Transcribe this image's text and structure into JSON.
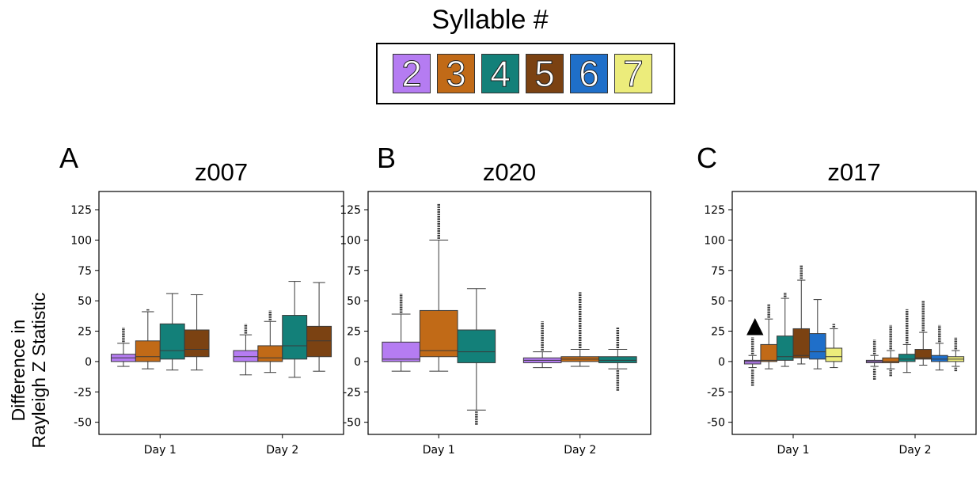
{
  "legend": {
    "title": "Syllable #",
    "items": [
      {
        "label": "2",
        "color": "#b57cf2"
      },
      {
        "label": "3",
        "color": "#c16a17"
      },
      {
        "label": "4",
        "color": "#138079"
      },
      {
        "label": "5",
        "color": "#7b4212"
      },
      {
        "label": "6",
        "color": "#1f6fc9"
      },
      {
        "label": "7",
        "color": "#ecec7b"
      }
    ]
  },
  "ylabel_lines": [
    "Difference in",
    "Rayleigh Z Statistic"
  ],
  "chart_data": [
    {
      "type": "box",
      "panel": "A",
      "title": "z007",
      "categories": [
        "Day 1",
        "Day 2"
      ],
      "yticks": [
        125,
        100,
        75,
        50,
        25,
        0,
        -25,
        -50
      ],
      "ylim": [
        -60,
        140
      ],
      "series": [
        {
          "name": "2",
          "boxes": [
            {
              "q1": 0,
              "median": 3,
              "q3": 6,
              "wlo": -4,
              "whi": 15,
              "outliers_high": [
                16,
                28
              ],
              "outliers_low": []
            },
            {
              "q1": 0,
              "median": 4,
              "q3": 9,
              "wlo": -11,
              "whi": 22,
              "outliers_high": [
                23,
                31
              ],
              "outliers_low": []
            }
          ]
        },
        {
          "name": "3",
          "boxes": [
            {
              "q1": 0,
              "median": 4,
              "q3": 17,
              "wlo": -6,
              "whi": 41,
              "outliers_high": [
                42,
                43
              ],
              "outliers_low": []
            },
            {
              "q1": 0,
              "median": 3,
              "q3": 13,
              "wlo": -9,
              "whi": 33,
              "outliers_high": [
                34,
                42
              ],
              "outliers_low": []
            }
          ]
        },
        {
          "name": "4",
          "boxes": [
            {
              "q1": 2,
              "median": 9,
              "q3": 31,
              "wlo": -7,
              "whi": 56,
              "outliers_high": [],
              "outliers_low": []
            },
            {
              "q1": 2,
              "median": 13,
              "q3": 38,
              "wlo": -13,
              "whi": 66,
              "outliers_high": [],
              "outliers_low": []
            }
          ]
        },
        {
          "name": "5",
          "boxes": [
            {
              "q1": 4,
              "median": 10,
              "q3": 26,
              "wlo": -7,
              "whi": 55,
              "outliers_high": [],
              "outliers_low": []
            },
            {
              "q1": 4,
              "median": 17,
              "q3": 29,
              "wlo": -8,
              "whi": 65,
              "outliers_high": [],
              "outliers_low": []
            }
          ]
        }
      ]
    },
    {
      "type": "box",
      "panel": "B",
      "title": "z020",
      "categories": [
        "Day 1",
        "Day 2"
      ],
      "yticks": [
        125,
        100,
        75,
        50,
        25,
        0,
        -25,
        -50
      ],
      "ylim": [
        -60,
        140
      ],
      "series": [
        {
          "name": "2",
          "boxes": [
            {
              "q1": 0,
              "median": 2,
              "q3": 16,
              "wlo": -8,
              "whi": 39,
              "outliers_high": [
                40,
                56
              ],
              "outliers_low": []
            },
            {
              "q1": -1,
              "median": 1,
              "q3": 3,
              "wlo": -5,
              "whi": 8,
              "outliers_high": [
                9,
                33
              ],
              "outliers_low": []
            }
          ]
        },
        {
          "name": "3",
          "boxes": [
            {
              "q1": 4,
              "median": 9,
              "q3": 42,
              "wlo": -8,
              "whi": 100,
              "outliers_high": [
                101,
                130
              ],
              "outliers_low": []
            },
            {
              "q1": 0,
              "median": 2,
              "q3": 4,
              "wlo": -4,
              "whi": 10,
              "outliers_high": [
                11,
                57
              ],
              "outliers_low": []
            }
          ]
        },
        {
          "name": "4",
          "boxes": [
            {
              "q1": -1,
              "median": 8,
              "q3": 26,
              "wlo": -40,
              "whi": 60,
              "outliers_high": [],
              "outliers_low": [
                -52,
                -41
              ]
            },
            {
              "q1": -1,
              "median": 1,
              "q3": 4,
              "wlo": -6,
              "whi": 10,
              "outliers_high": [
                11,
                28
              ],
              "outliers_low": [
                -24,
                -7
              ]
            }
          ]
        }
      ]
    },
    {
      "type": "box",
      "panel": "C",
      "title": "z017",
      "annotation": "▲",
      "categories": [
        "Day 1",
        "Day 2"
      ],
      "yticks": [
        125,
        100,
        75,
        50,
        25,
        0,
        -25,
        -50
      ],
      "ylim": [
        -60,
        140
      ],
      "series": [
        {
          "name": "2",
          "boxes": [
            {
              "q1": -2,
              "median": 0,
              "q3": 1,
              "wlo": -5,
              "whi": 5,
              "outliers_high": [
                6,
                20
              ],
              "outliers_low": [
                -20,
                -6
              ]
            },
            {
              "q1": -1,
              "median": 0,
              "q3": 1,
              "wlo": -4,
              "whi": 5,
              "outliers_high": [
                6,
                18
              ],
              "outliers_low": [
                -15,
                -5
              ]
            }
          ]
        },
        {
          "name": "3",
          "boxes": [
            {
              "q1": 0,
              "median": 1,
              "q3": 14,
              "wlo": -6,
              "whi": 35,
              "outliers_high": [
                36,
                47
              ],
              "outliers_low": []
            },
            {
              "q1": -1,
              "median": 0,
              "q3": 3,
              "wlo": -6,
              "whi": 9,
              "outliers_high": [
                10,
                30
              ],
              "outliers_low": [
                -12,
                -7
              ]
            }
          ]
        },
        {
          "name": "4",
          "boxes": [
            {
              "q1": 1,
              "median": 4,
              "q3": 21,
              "wlo": -4,
              "whi": 52,
              "outliers_high": [
                53,
                57
              ],
              "outliers_low": []
            },
            {
              "q1": 0,
              "median": 2,
              "q3": 6,
              "wlo": -9,
              "whi": 14,
              "outliers_high": [
                15,
                43
              ],
              "outliers_low": []
            }
          ]
        },
        {
          "name": "5",
          "boxes": [
            {
              "q1": 3,
              "median": 5,
              "q3": 27,
              "wlo": -2,
              "whi": 67,
              "outliers_high": [
                68,
                79
              ],
              "outliers_low": []
            },
            {
              "q1": 2,
              "median": 3,
              "q3": 10,
              "wlo": -3,
              "whi": 24,
              "outliers_high": [
                25,
                50
              ],
              "outliers_low": []
            }
          ]
        },
        {
          "name": "6",
          "boxes": [
            {
              "q1": 2,
              "median": 8,
              "q3": 23,
              "wlo": -6,
              "whi": 51,
              "outliers_high": [],
              "outliers_low": []
            },
            {
              "q1": 0,
              "median": 2,
              "q3": 5,
              "wlo": -7,
              "whi": 15,
              "outliers_high": [
                16,
                30
              ],
              "outliers_low": []
            }
          ]
        },
        {
          "name": "7",
          "boxes": [
            {
              "q1": 0,
              "median": 4,
              "q3": 11,
              "wlo": -5,
              "whi": 27,
              "outliers_high": [
                28,
                31
              ],
              "outliers_low": []
            },
            {
              "q1": 0,
              "median": 2,
              "q3": 4,
              "wlo": -4,
              "whi": 9,
              "outliers_high": [
                10,
                20
              ],
              "outliers_low": [
                -8,
                -5
              ]
            }
          ]
        }
      ]
    }
  ]
}
